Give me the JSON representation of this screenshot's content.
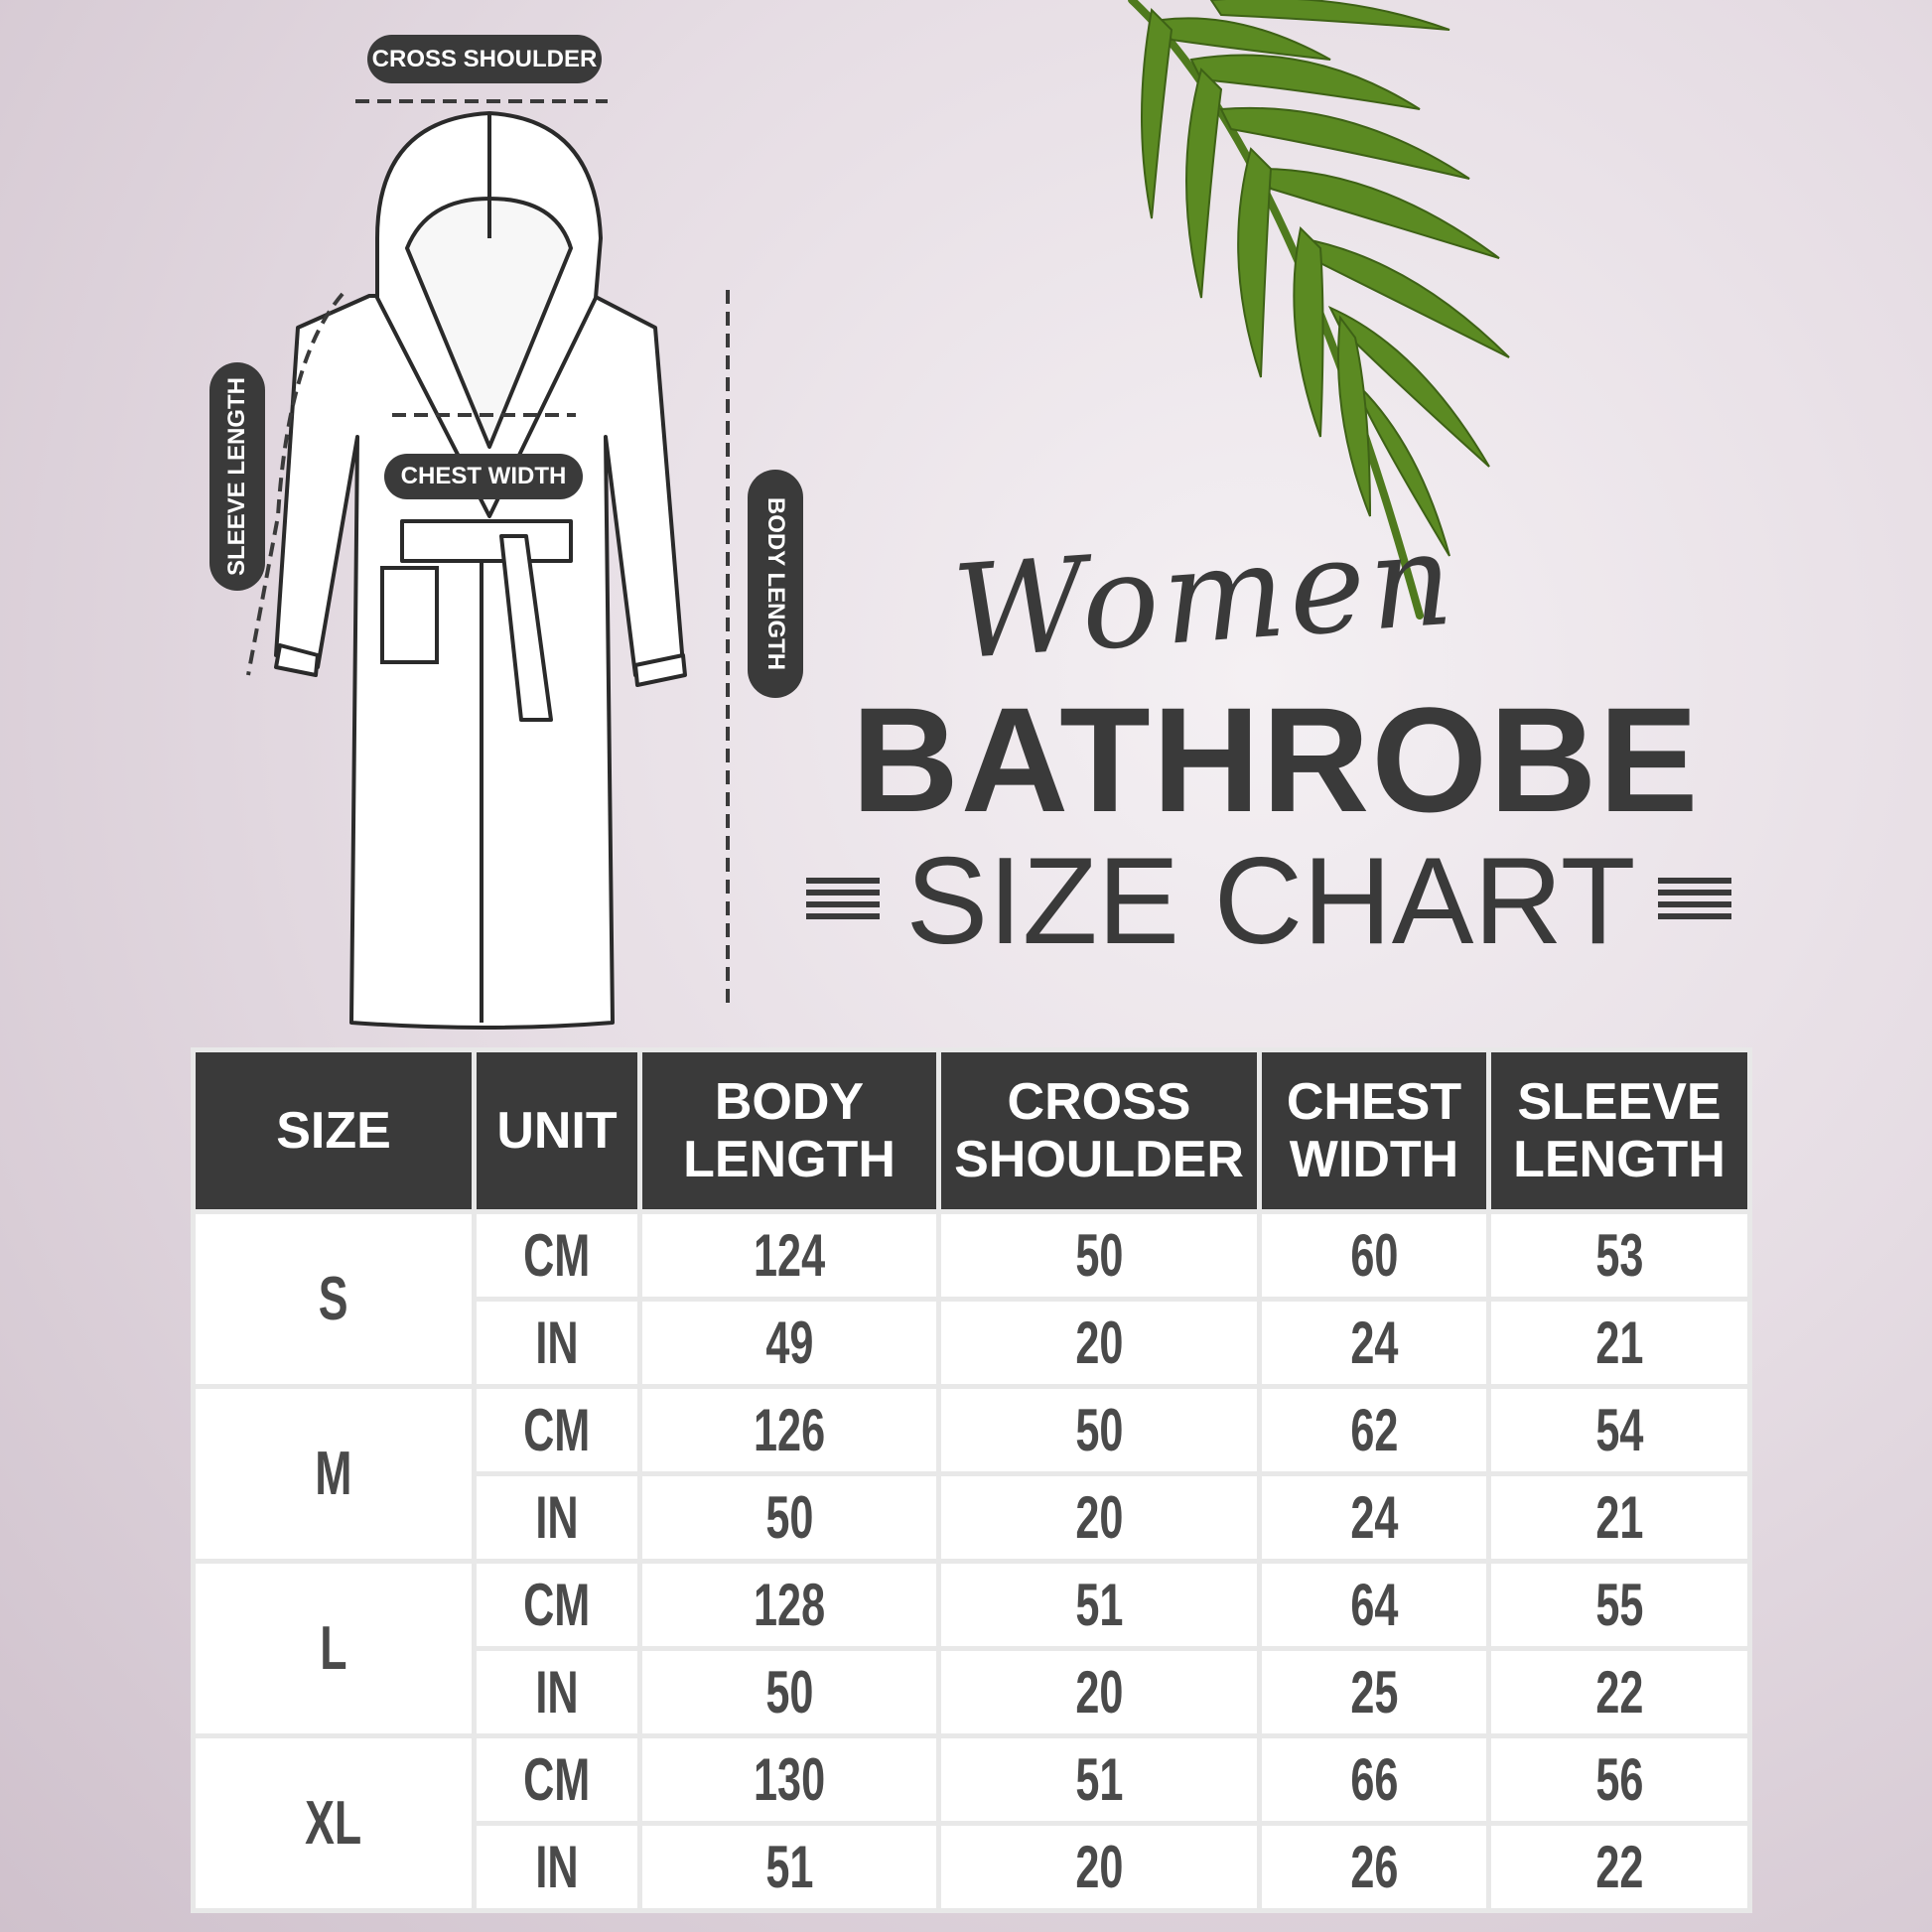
{
  "title": {
    "script": "Women",
    "main": "BATHROBE",
    "sub": "SIZE CHART"
  },
  "diagram_labels": {
    "cross_shoulder": "CROSS SHOULDER",
    "chest_width": "CHEST WIDTH",
    "sleeve_length": "SLEEVE LENGTH",
    "body_length": "BODY LENGTH"
  },
  "colors": {
    "dark": "#3a3a3a",
    "text": "#4a4a4a",
    "leaf": "#4f7a1e",
    "background": "#e6dde4"
  },
  "table": {
    "headers": [
      "SIZE",
      "UNIT",
      "BODY LENGTH",
      "CROSS SHOULDER",
      "CHEST WIDTH",
      "SLEEVE LENGTH"
    ],
    "rows": [
      {
        "size": "S",
        "cm": {
          "unit": "CM",
          "values": [
            "124",
            "50",
            "60",
            "53"
          ]
        },
        "in": {
          "unit": "IN",
          "values": [
            "49",
            "20",
            "24",
            "21"
          ]
        }
      },
      {
        "size": "M",
        "cm": {
          "unit": "CM",
          "values": [
            "126",
            "50",
            "62",
            "54"
          ]
        },
        "in": {
          "unit": "IN",
          "values": [
            "50",
            "20",
            "24",
            "21"
          ]
        }
      },
      {
        "size": "L",
        "cm": {
          "unit": "CM",
          "values": [
            "128",
            "51",
            "64",
            "55"
          ]
        },
        "in": {
          "unit": "IN",
          "values": [
            "50",
            "20",
            "25",
            "22"
          ]
        }
      },
      {
        "size": "XL",
        "cm": {
          "unit": "CM",
          "values": [
            "130",
            "51",
            "66",
            "56"
          ]
        },
        "in": {
          "unit": "IN",
          "values": [
            "51",
            "20",
            "26",
            "22"
          ]
        }
      }
    ]
  }
}
